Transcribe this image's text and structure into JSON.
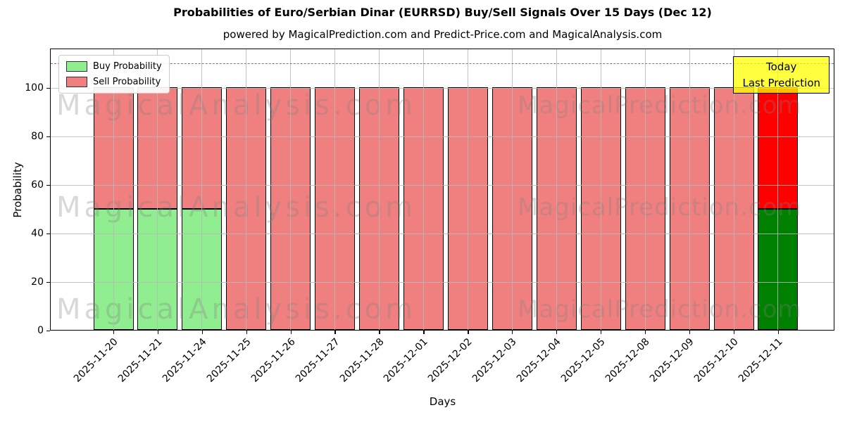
{
  "title": "Probabilities of Euro/Serbian Dinar (EURRSD) Buy/Sell Signals Over 15 Days (Dec 12)",
  "subtitle": "powered by MagicalPrediction.com and Predict-Price.com and MagicalAnalysis.com",
  "legend": {
    "items": [
      {
        "label": "Buy Probability",
        "color": "#90ee90"
      },
      {
        "label": "Sell Probability",
        "color": "#f08080"
      }
    ]
  },
  "annotation": {
    "line1": "Today",
    "line2": "Last Prediction",
    "bg_color": "#ffff00"
  },
  "watermarks": {
    "left": "MagicalAnalysis.com",
    "right": "MagicalPrediction.com"
  },
  "chart_data": {
    "type": "bar",
    "stacked": true,
    "title": "Probabilities of Euro/Serbian Dinar (EURRSD) Buy/Sell Signals Over 15 Days (Dec 12)",
    "xlabel": "Days",
    "ylabel": "Probability",
    "categories": [
      "2025-11-20",
      "2025-11-21",
      "2025-11-24",
      "2025-11-25",
      "2025-11-26",
      "2025-11-27",
      "2025-11-28",
      "2025-12-01",
      "2025-12-02",
      "2025-12-03",
      "2025-12-04",
      "2025-12-05",
      "2025-12-08",
      "2025-12-09",
      "2025-12-10",
      "2025-12-11"
    ],
    "series": [
      {
        "name": "Buy Probability",
        "color": "#90ee90",
        "today_color": "#008000",
        "values": [
          50,
          50,
          50,
          0,
          0,
          0,
          0,
          0,
          0,
          0,
          0,
          0,
          0,
          0,
          0,
          50
        ]
      },
      {
        "name": "Sell Probability",
        "color": "#f08080",
        "today_color": "#ff0000",
        "values": [
          50,
          50,
          50,
          100,
          100,
          100,
          100,
          100,
          100,
          100,
          100,
          100,
          100,
          100,
          100,
          50
        ]
      }
    ],
    "today_index": 15,
    "yticks": [
      0,
      20,
      40,
      60,
      80,
      100
    ],
    "ylim": [
      0,
      116
    ],
    "dashed_threshold": 110,
    "grid": true,
    "legend_position": "upper left"
  }
}
